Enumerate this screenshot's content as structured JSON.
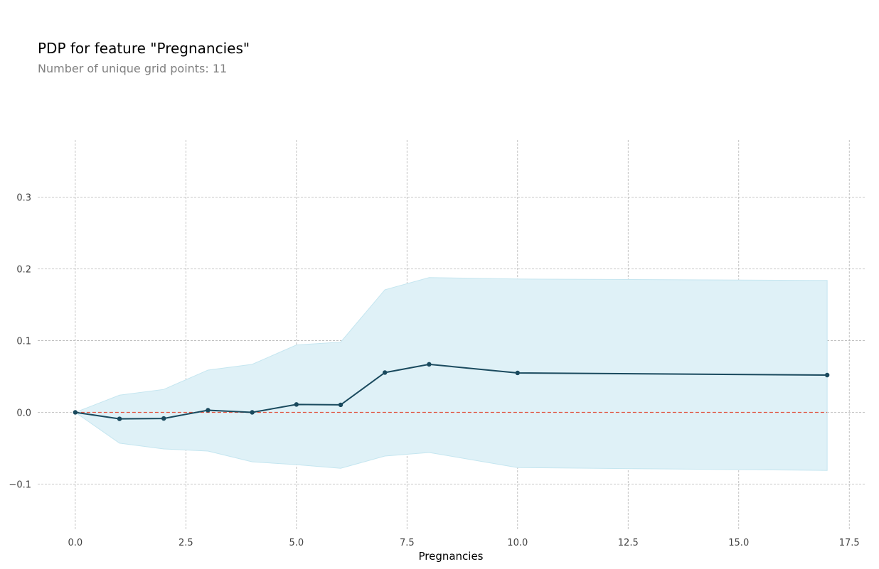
{
  "title": "PDP for feature \"Pregnancies\"",
  "subtitle": "Number of unique grid points: 11",
  "chart_data": {
    "type": "line",
    "title": "PDP for feature \"Pregnancies\"",
    "subtitle": "Number of unique grid points: 11",
    "xlabel": "Pregnancies",
    "ylabel": "",
    "xlim": [
      -0.85,
      17.85
    ],
    "ylim": [
      -0.165,
      0.38
    ],
    "x_ticks": [
      0.0,
      2.5,
      5.0,
      7.5,
      10.0,
      12.5,
      15.0,
      17.5
    ],
    "x_tick_labels": [
      "0.0",
      "2.5",
      "5.0",
      "7.5",
      "10.0",
      "12.5",
      "15.0",
      "17.5"
    ],
    "y_ticks": [
      -0.1,
      0.0,
      0.1,
      0.2,
      0.3
    ],
    "y_tick_labels": [
      "−0.1",
      "0.0",
      "0.1",
      "0.2",
      "0.3"
    ],
    "grid": true,
    "x": [
      0,
      1,
      2,
      3,
      4,
      5,
      6,
      7,
      8,
      10,
      17
    ],
    "series": [
      {
        "values": [
          0.0,
          -0.009,
          -0.0085,
          0.003,
          0.0,
          0.011,
          0.0105,
          0.0555,
          0.067,
          0.055,
          0.052
        ]
      }
    ],
    "band_upper": [
      0.0,
      0.024,
      0.032,
      0.059,
      0.067,
      0.094,
      0.098,
      0.171,
      0.188,
      0.186,
      0.184
    ],
    "band_lower": [
      0.0,
      -0.043,
      -0.051,
      -0.054,
      -0.069,
      -0.073,
      -0.078,
      -0.061,
      -0.056,
      -0.077,
      -0.081
    ],
    "baseline": 0.0,
    "colors": {
      "line": "#1a4a5e",
      "band": "#dff1f7",
      "band_edge": "#c5e6f0",
      "baseline": "#e0533f",
      "grid": "#b5b5b5"
    }
  }
}
